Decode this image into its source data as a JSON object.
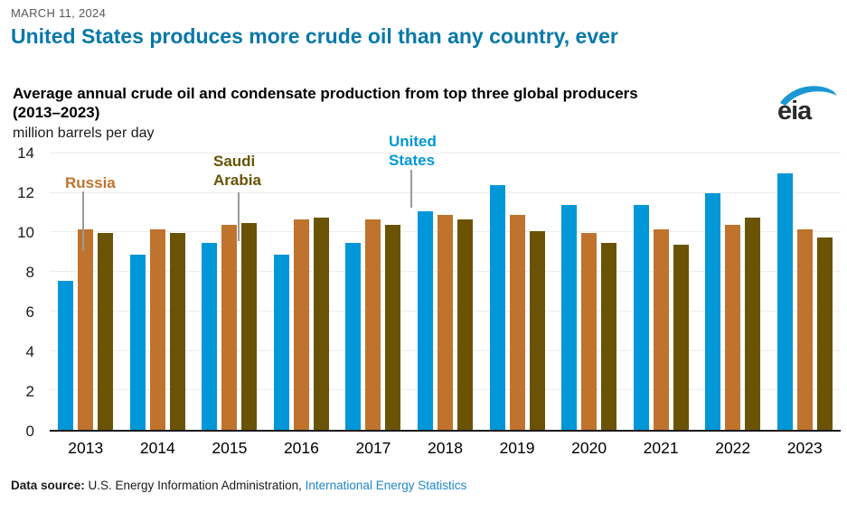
{
  "page": {
    "date": "MARCH 11, 2024",
    "headline": "United States produces more crude oil than any country, ever"
  },
  "chart": {
    "title": "Average annual crude oil and condensate production from top three global producers\n(2013–2023)",
    "unit_label": "million barrels per day",
    "logo_text": "eia"
  },
  "annotations": {
    "russia": "Russia",
    "saudi": "Saudi\nArabia",
    "us": "United\nStates"
  },
  "footer": {
    "source_label": "Data source:",
    "source_text": " U.S. Energy Information Administration, ",
    "source_link": "International Energy Statistics"
  },
  "colors": {
    "us": "#0097d8",
    "russia": "#bf732d",
    "saudi": "#6a5304",
    "headline_blue": "#0778ab",
    "link_blue": "#1e87c9",
    "gridline": "#ededed",
    "leader_line": "#9b9b9b"
  },
  "chart_data": {
    "type": "bar",
    "title": "Average annual crude oil and condensate production from top three global producers (2013–2023)",
    "ylabel": "million barrels per day",
    "xlabel": "",
    "ylim": [
      0,
      14
    ],
    "yticks": [
      0,
      2,
      4,
      6,
      8,
      10,
      12,
      14
    ],
    "grid": true,
    "legend_position": "inline-annotations",
    "categories": [
      "2013",
      "2014",
      "2015",
      "2016",
      "2017",
      "2018",
      "2019",
      "2020",
      "2021",
      "2022",
      "2023"
    ],
    "series": [
      {
        "name": "United States",
        "color_key": "us",
        "values": [
          7.5,
          8.8,
          9.4,
          8.8,
          9.4,
          11.0,
          12.3,
          11.3,
          11.3,
          11.9,
          12.9
        ]
      },
      {
        "name": "Russia",
        "color_key": "russia",
        "values": [
          10.1,
          10.1,
          10.3,
          10.6,
          10.6,
          10.8,
          10.8,
          9.9,
          10.1,
          10.3,
          10.1
        ]
      },
      {
        "name": "Saudi Arabia",
        "color_key": "saudi",
        "values": [
          9.9,
          9.9,
          10.4,
          10.7,
          10.3,
          10.6,
          10.0,
          9.4,
          9.3,
          10.7,
          9.7
        ]
      }
    ]
  }
}
